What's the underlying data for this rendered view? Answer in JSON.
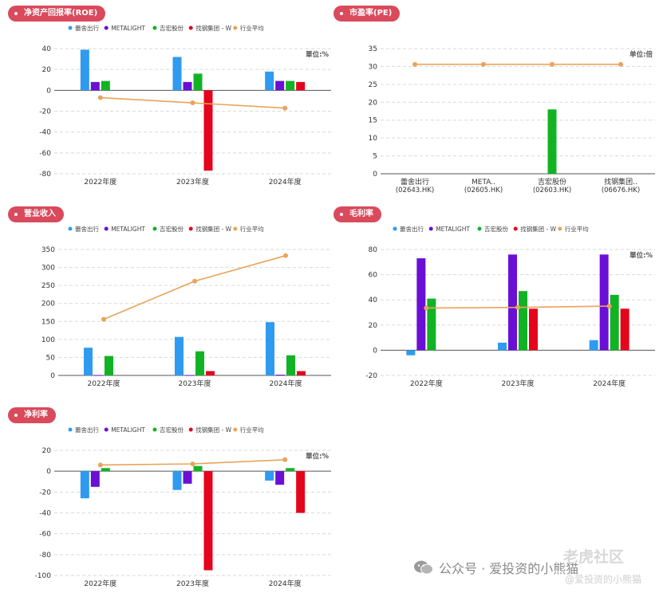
{
  "colors": {
    "title_bg": "#d94a5c",
    "grid": "#d9d9d9",
    "axis": "#555555",
    "series": [
      "#2f9bf0",
      "#6a0fd6",
      "#11b325",
      "#e4051c",
      "#e9a35a"
    ]
  },
  "legend_labels": [
    "蕾舍出行",
    "METALIGHT",
    "吉宏股份",
    "找钢集团 - W",
    "行业平均"
  ],
  "charts": [
    {
      "title": "净资产回报率(ROE)",
      "chart_data": {
        "type": "bar",
        "unit": "單位:%",
        "categories": [
          "2022年度",
          "2023年度",
          "2024年度"
        ],
        "ylim": [
          -80,
          40
        ],
        "yticks": [
          -80,
          -60,
          -40,
          -20,
          0,
          20,
          40
        ],
        "series": [
          {
            "name": "蕾舍出行",
            "values": [
              39,
              32,
              18
            ]
          },
          {
            "name": "METALIGHT",
            "values": [
              8,
              8,
              9
            ]
          },
          {
            "name": "吉宏股份",
            "values": [
              9,
              16,
              9
            ]
          },
          {
            "name": "找钢集团 - W",
            "values": [
              null,
              -77,
              8
            ]
          }
        ],
        "line": {
          "name": "行业平均",
          "values": [
            -7,
            -12,
            -17
          ]
        },
        "grid": true,
        "legend": "top"
      }
    },
    {
      "title": "市盈率(PE)",
      "chart_data": {
        "type": "bar",
        "unit": "单位:倍",
        "categories": [
          "蕾舍出行",
          "META..",
          "吉宏股份",
          "找钢集团.."
        ],
        "categories_sub": [
          "(02643.HK)",
          "(02605.HK)",
          "(02603.HK)",
          "(06676.HK)"
        ],
        "ylim": [
          0,
          35
        ],
        "yticks": [
          0,
          5,
          10,
          15,
          20,
          25,
          30,
          35
        ],
        "values": [
          null,
          null,
          18,
          null
        ],
        "line": {
          "name": "行业平均",
          "values": [
            30.6,
            30.6,
            30.6,
            30.6
          ]
        },
        "grid": true
      }
    },
    {
      "title": "营业收入",
      "chart_data": {
        "type": "bar",
        "unit": "",
        "categories": [
          "2022年度",
          "2023年度",
          "2024年度"
        ],
        "ylim": [
          0,
          350
        ],
        "yticks": [
          0,
          50,
          100,
          150,
          200,
          250,
          300,
          350
        ],
        "series": [
          {
            "name": "蕾舍出行",
            "values": [
              77,
              107,
              148
            ]
          },
          {
            "name": "METALIGHT",
            "values": [
              1,
              1,
              2
            ]
          },
          {
            "name": "吉宏股份",
            "values": [
              54,
              67,
              56
            ]
          },
          {
            "name": "找钢集团 - W",
            "values": [
              null,
              12,
              12
            ]
          }
        ],
        "line": {
          "name": "行业平均",
          "values": [
            156,
            262,
            333
          ]
        },
        "grid": true,
        "legend": "top"
      }
    },
    {
      "title": "毛利率",
      "chart_data": {
        "type": "bar",
        "unit": "單位:%",
        "categories": [
          "2022年度",
          "2023年度",
          "2024年度"
        ],
        "ylim": [
          -20,
          80
        ],
        "yticks": [
          -20,
          0,
          20,
          40,
          60,
          80
        ],
        "series": [
          {
            "name": "蕾舍出行",
            "values": [
              -4,
              6,
              8
            ]
          },
          {
            "name": "METALIGHT",
            "values": [
              73,
              76,
              76
            ]
          },
          {
            "name": "吉宏股份",
            "values": [
              41,
              47,
              44
            ]
          },
          {
            "name": "找钢集团 - W",
            "values": [
              null,
              33,
              33
            ]
          }
        ],
        "line": {
          "name": "行业平均",
          "values": [
            33.5,
            34,
            35
          ]
        },
        "grid": true,
        "legend": "top"
      }
    },
    {
      "title": "净利率",
      "chart_data": {
        "type": "bar",
        "unit": "單位:%",
        "categories": [
          "2022年度",
          "2023年度",
          "2024年度"
        ],
        "ylim": [
          -100,
          20
        ],
        "yticks": [
          -100,
          -80,
          -60,
          -40,
          -20,
          0,
          20
        ],
        "series": [
          {
            "name": "蕾舍出行",
            "values": [
              -26,
              -18,
              -9
            ]
          },
          {
            "name": "METALIGHT",
            "values": [
              -15,
              -12,
              -13
            ]
          },
          {
            "name": "吉宏股份",
            "values": [
              3,
              5,
              3
            ]
          },
          {
            "name": "找钢集团 - W",
            "values": [
              null,
              -95,
              -40
            ]
          }
        ],
        "line": {
          "name": "行业平均",
          "values": [
            6,
            7,
            11
          ]
        },
        "grid": true,
        "legend": "top"
      }
    }
  ],
  "watermark": {
    "channel": "公众号 · 爱投资的小熊猫",
    "site": "老虎社区",
    "handle": "@爱投资的小熊猫"
  }
}
